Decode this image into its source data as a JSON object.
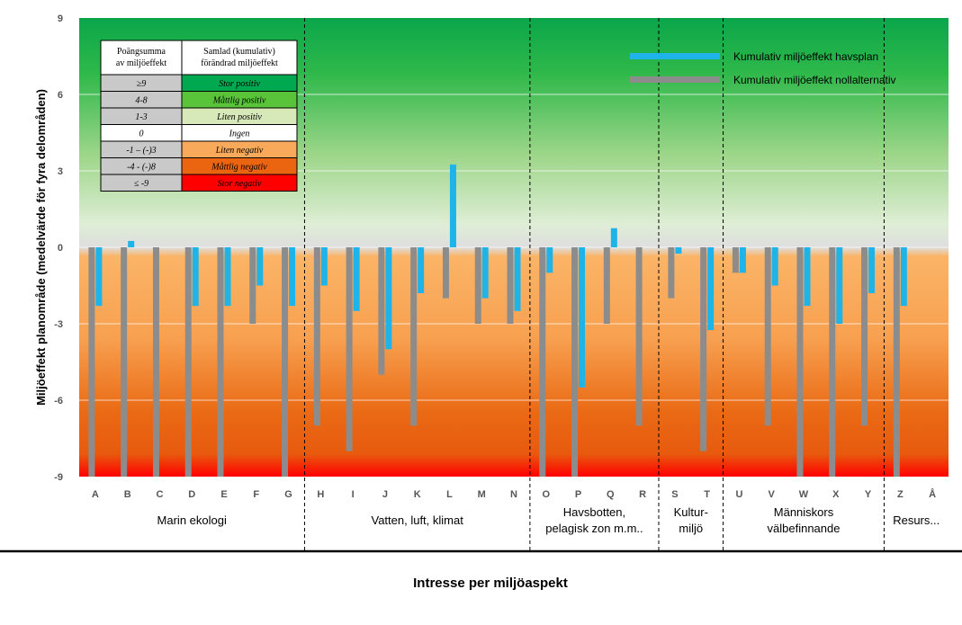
{
  "chart_data": {
    "type": "bar",
    "xlabel": "Intresse per miljöaspekt",
    "ylabel": "Miljöeffekt planområde (medelvärde för fyra delområden)",
    "ylim": [
      -9,
      9
    ],
    "yticks": [
      "9",
      "6",
      "3",
      "0",
      "-3",
      "-6",
      "-9"
    ],
    "ytick_values": [
      9,
      6,
      3,
      0,
      -3,
      -6,
      -9
    ],
    "categories": [
      "A",
      "B",
      "C",
      "D",
      "E",
      "F",
      "G",
      "H",
      "I",
      "J",
      "K",
      "L",
      "M",
      "N",
      "O",
      "P",
      "Q",
      "R",
      "S",
      "T",
      "U",
      "V",
      "W",
      "X",
      "Y",
      "Z",
      "Å"
    ],
    "series": [
      {
        "name": "Kumulativ miljöeffekt nollalternativ",
        "color": "#8c8c8c",
        "values": [
          -9,
          -9,
          -9,
          -9,
          -9,
          -3,
          -9,
          -7,
          -8,
          -5,
          -7,
          -2,
          -3,
          -3,
          -9,
          -9,
          -3,
          -7,
          -2,
          -8,
          -1,
          -7,
          -9,
          -9,
          -7,
          -9,
          null
        ]
      },
      {
        "name": "Kumulativ miljöeffekt havsplan",
        "color": "#1eb4ea",
        "values": [
          -2.3,
          0.25,
          null,
          -2.3,
          -2.3,
          -1.5,
          -2.3,
          -1.5,
          -2.5,
          -4,
          -1.8,
          3.25,
          -2,
          -2.5,
          -1,
          -5.5,
          0.75,
          null,
          -0.25,
          -3.25,
          -1,
          -1.5,
          -2.3,
          -3,
          -1.8,
          -2.3,
          null
        ]
      }
    ],
    "groups": [
      {
        "lines": [
          "Marin ekologi"
        ],
        "from": 0,
        "to": 6
      },
      {
        "lines": [
          "Vatten, luft, klimat"
        ],
        "from": 7,
        "to": 13
      },
      {
        "lines": [
          "Havsbotten,",
          "pelagisk zon m.m.."
        ],
        "from": 14,
        "to": 17
      },
      {
        "lines": [
          "Kultur-",
          "miljö"
        ],
        "from": 18,
        "to": 19
      },
      {
        "lines": [
          "Människors",
          "välbefinnande"
        ],
        "from": 20,
        "to": 24
      },
      {
        "lines": [
          "Resurs..."
        ],
        "from": 25,
        "to": 26
      }
    ],
    "legend_position": "top-right",
    "grid": true
  },
  "score_table": {
    "headers": [
      [
        "Poängsumma",
        "av miljöeffekt"
      ],
      [
        "Samlad (kumulativ)",
        "förändrad miljöeffekt"
      ]
    ],
    "rows": [
      {
        "score": "≥9",
        "label": "Stor positiv",
        "color": "#00a84f"
      },
      {
        "score": "4-8",
        "label": "Måttlig positiv",
        "color": "#59c33a"
      },
      {
        "score": "1-3",
        "label": "Liten positiv",
        "color": "#d7e9b9"
      },
      {
        "score": "0",
        "label": "Ingen",
        "color": "#ffffff"
      },
      {
        "score": "-1 – (-)3",
        "label": "Liten negativ",
        "color": "#f8a95a"
      },
      {
        "score": "-4 - (-)8",
        "label": "Måttlig negativ",
        "color": "#eb6410"
      },
      {
        "score": "≤ -9",
        "label": "Stor negativ",
        "color": "#ff0000"
      }
    ]
  }
}
